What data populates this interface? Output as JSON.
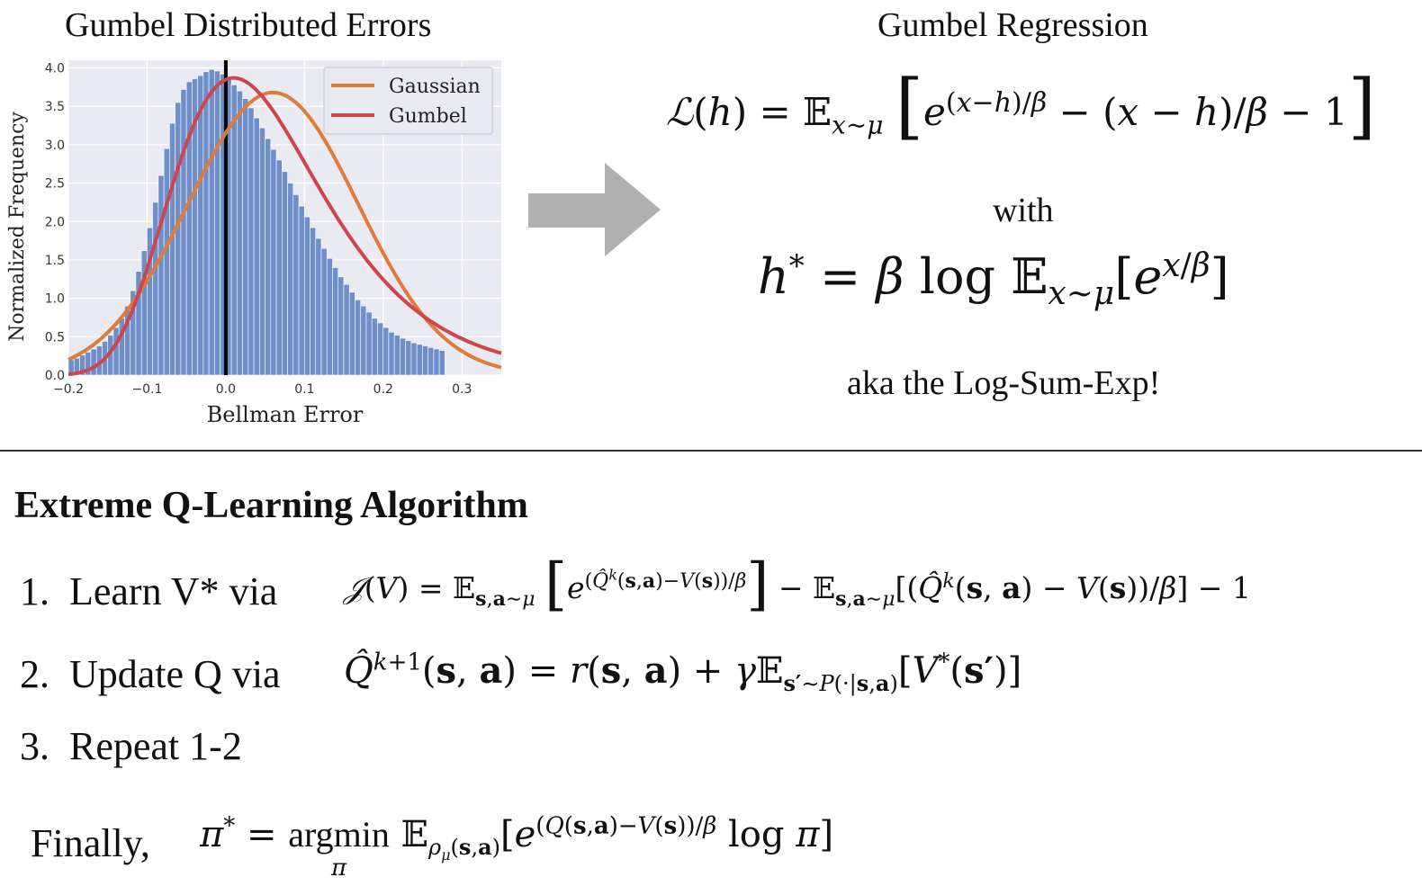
{
  "left_title": "Gumbel Distributed Errors",
  "right_title": "Gumbel Regression",
  "chart_data": {
    "type": "bar",
    "xlabel": "Bellman Error",
    "ylabel": "Normalized Frequency",
    "xlim": [
      -0.2,
      0.35
    ],
    "ylim": [
      0,
      4.1
    ],
    "x_ticks": [
      "−0.2",
      "−0.1",
      "0.0",
      "0.1",
      "0.2",
      "0.3"
    ],
    "x_tick_values": [
      -0.2,
      -0.1,
      0.0,
      0.1,
      0.2,
      0.3
    ],
    "y_ticks": [
      "0.0",
      "0.5",
      "1.0",
      "1.5",
      "2.0",
      "2.5",
      "3.0",
      "3.5",
      "4.0"
    ],
    "y_tick_values": [
      0,
      0.5,
      1.0,
      1.5,
      2.0,
      2.5,
      3.0,
      3.5,
      4.0
    ],
    "grid": true,
    "legend_position": "top-right",
    "histogram": {
      "bin_start": -0.2,
      "bin_width": 0.00714,
      "values": [
        0.2,
        0.22,
        0.26,
        0.3,
        0.34,
        0.38,
        0.44,
        0.52,
        0.62,
        0.74,
        0.9,
        1.1,
        1.35,
        1.62,
        1.92,
        2.25,
        2.6,
        2.95,
        3.28,
        3.55,
        3.72,
        3.82,
        3.86,
        3.9,
        3.95,
        3.98,
        3.96,
        3.92,
        3.86,
        3.78,
        3.7,
        3.6,
        3.48,
        3.35,
        3.22,
        3.08,
        2.94,
        2.8,
        2.65,
        2.5,
        2.35,
        2.2,
        2.06,
        1.92,
        1.78,
        1.65,
        1.52,
        1.4,
        1.28,
        1.18,
        1.08,
        0.98,
        0.9,
        0.82,
        0.74,
        0.68,
        0.62,
        0.56,
        0.52,
        0.48,
        0.45,
        0.42,
        0.4,
        0.38,
        0.36,
        0.34,
        0.32
      ],
      "color": "#6f8fca"
    },
    "vline": {
      "x": 0.0,
      "color": "#000000"
    },
    "series": [
      {
        "name": "Gaussian",
        "color": "#e07b39",
        "kind": "gaussian",
        "mu": 0.06,
        "sigma": 0.108,
        "peak": 3.68
      },
      {
        "name": "Gumbel",
        "color": "#d0444b",
        "kind": "gumbel",
        "mu": 0.01,
        "beta": 0.095,
        "peak": 3.87
      }
    ]
  },
  "colors": {
    "arrow": "#b0b0b0",
    "plot_bg": "#eaeaf2",
    "grid": "#ffffff"
  },
  "right_panel": {
    "loss_formula": "ℒ(h) = 𝔼_{x∼μ} [ e^{(x−h)/β} − (x − h)/β − 1 ]",
    "with_text": "with",
    "h_formula": "h* = β log 𝔼_{x∼μ}[e^{x/β}]",
    "aka_text": "aka the Log-Sum-Exp!"
  },
  "algorithm": {
    "title": "Extreme Q-Learning Algorithm",
    "steps": [
      {
        "number": "1.",
        "label": "Learn V* via",
        "formula": "𝒥(V) = 𝔼_{s,a∼μ} [ e^{(Q̂^k(s,a)−V(s))/β} ] − 𝔼_{s,a∼μ}[(Q̂^k(s,a) − V(s))/β] − 1"
      },
      {
        "number": "2.",
        "label": "Update Q via",
        "formula": "Q̂^{k+1}(s,a) = r(s,a) + γ𝔼_{s′∼P(·|s,a)}[V*(s′)]"
      },
      {
        "number": "3.",
        "label": "Repeat 1-2"
      }
    ],
    "finally_label": "Finally,",
    "finally_formula": "π* = argmin_π 𝔼_{ρ_μ(s,a)}[e^{(Q(s,a)−V(s))/β} log π]"
  }
}
